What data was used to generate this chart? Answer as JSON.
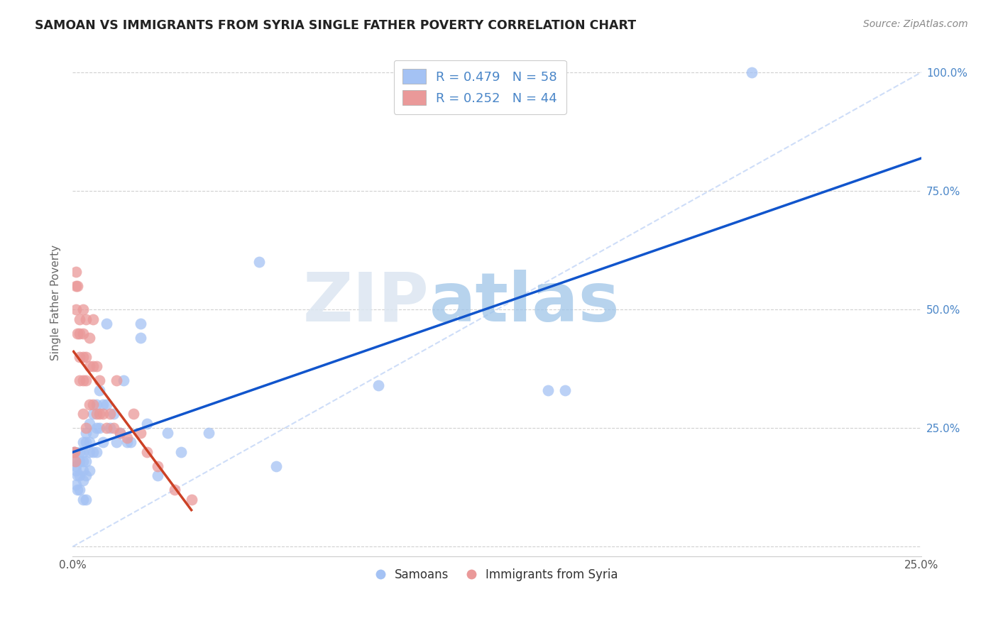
{
  "title": "SAMOAN VS IMMIGRANTS FROM SYRIA SINGLE FATHER POVERTY CORRELATION CHART",
  "source": "Source: ZipAtlas.com",
  "ylabel": "Single Father Poverty",
  "legend1_label": "R = 0.479   N = 58",
  "legend2_label": "R = 0.252   N = 44",
  "legend_bottom1": "Samoans",
  "legend_bottom2": "Immigrants from Syria",
  "blue_color": "#a4c2f4",
  "pink_color": "#ea9999",
  "blue_line_color": "#1155cc",
  "pink_line_color": "#cc4125",
  "dashed_line_color": "#c9daf8",
  "watermark_zip": "ZIP",
  "watermark_atlas": "atlas",
  "background_color": "#ffffff",
  "grid_color": "#d0d0d0",
  "xlim": [
    0.0,
    0.25
  ],
  "ylim": [
    -0.02,
    1.05
  ],
  "samoans_x": [
    0.0005,
    0.0008,
    0.001,
    0.001,
    0.001,
    0.0015,
    0.0015,
    0.002,
    0.002,
    0.002,
    0.002,
    0.003,
    0.003,
    0.003,
    0.003,
    0.003,
    0.003,
    0.004,
    0.004,
    0.004,
    0.004,
    0.004,
    0.005,
    0.005,
    0.005,
    0.005,
    0.006,
    0.006,
    0.006,
    0.007,
    0.007,
    0.007,
    0.008,
    0.008,
    0.009,
    0.009,
    0.01,
    0.01,
    0.011,
    0.012,
    0.013,
    0.014,
    0.015,
    0.016,
    0.017,
    0.02,
    0.02,
    0.022,
    0.025,
    0.028,
    0.032,
    0.04,
    0.055,
    0.06,
    0.09,
    0.14,
    0.145,
    0.2
  ],
  "samoans_y": [
    0.2,
    0.18,
    0.17,
    0.16,
    0.13,
    0.15,
    0.12,
    0.2,
    0.18,
    0.15,
    0.12,
    0.22,
    0.2,
    0.18,
    0.16,
    0.14,
    0.1,
    0.24,
    0.22,
    0.18,
    0.15,
    0.1,
    0.26,
    0.22,
    0.2,
    0.16,
    0.28,
    0.24,
    0.2,
    0.3,
    0.25,
    0.2,
    0.33,
    0.25,
    0.3,
    0.22,
    0.47,
    0.3,
    0.25,
    0.28,
    0.22,
    0.24,
    0.35,
    0.22,
    0.22,
    0.47,
    0.44,
    0.26,
    0.15,
    0.24,
    0.2,
    0.24,
    0.6,
    0.17,
    0.34,
    0.33,
    0.33,
    1.0
  ],
  "syria_x": [
    0.0003,
    0.0005,
    0.0008,
    0.001,
    0.001,
    0.001,
    0.0015,
    0.0015,
    0.002,
    0.002,
    0.002,
    0.002,
    0.003,
    0.003,
    0.003,
    0.003,
    0.003,
    0.004,
    0.004,
    0.004,
    0.004,
    0.005,
    0.005,
    0.005,
    0.006,
    0.006,
    0.006,
    0.007,
    0.007,
    0.008,
    0.008,
    0.009,
    0.01,
    0.011,
    0.012,
    0.013,
    0.014,
    0.016,
    0.018,
    0.02,
    0.022,
    0.025,
    0.03,
    0.035
  ],
  "syria_y": [
    0.2,
    0.2,
    0.18,
    0.58,
    0.55,
    0.5,
    0.55,
    0.45,
    0.48,
    0.45,
    0.4,
    0.35,
    0.5,
    0.45,
    0.4,
    0.35,
    0.28,
    0.48,
    0.4,
    0.35,
    0.25,
    0.44,
    0.38,
    0.3,
    0.48,
    0.38,
    0.3,
    0.38,
    0.28,
    0.35,
    0.28,
    0.28,
    0.25,
    0.28,
    0.25,
    0.35,
    0.24,
    0.23,
    0.28,
    0.24,
    0.2,
    0.17,
    0.12,
    0.1
  ]
}
